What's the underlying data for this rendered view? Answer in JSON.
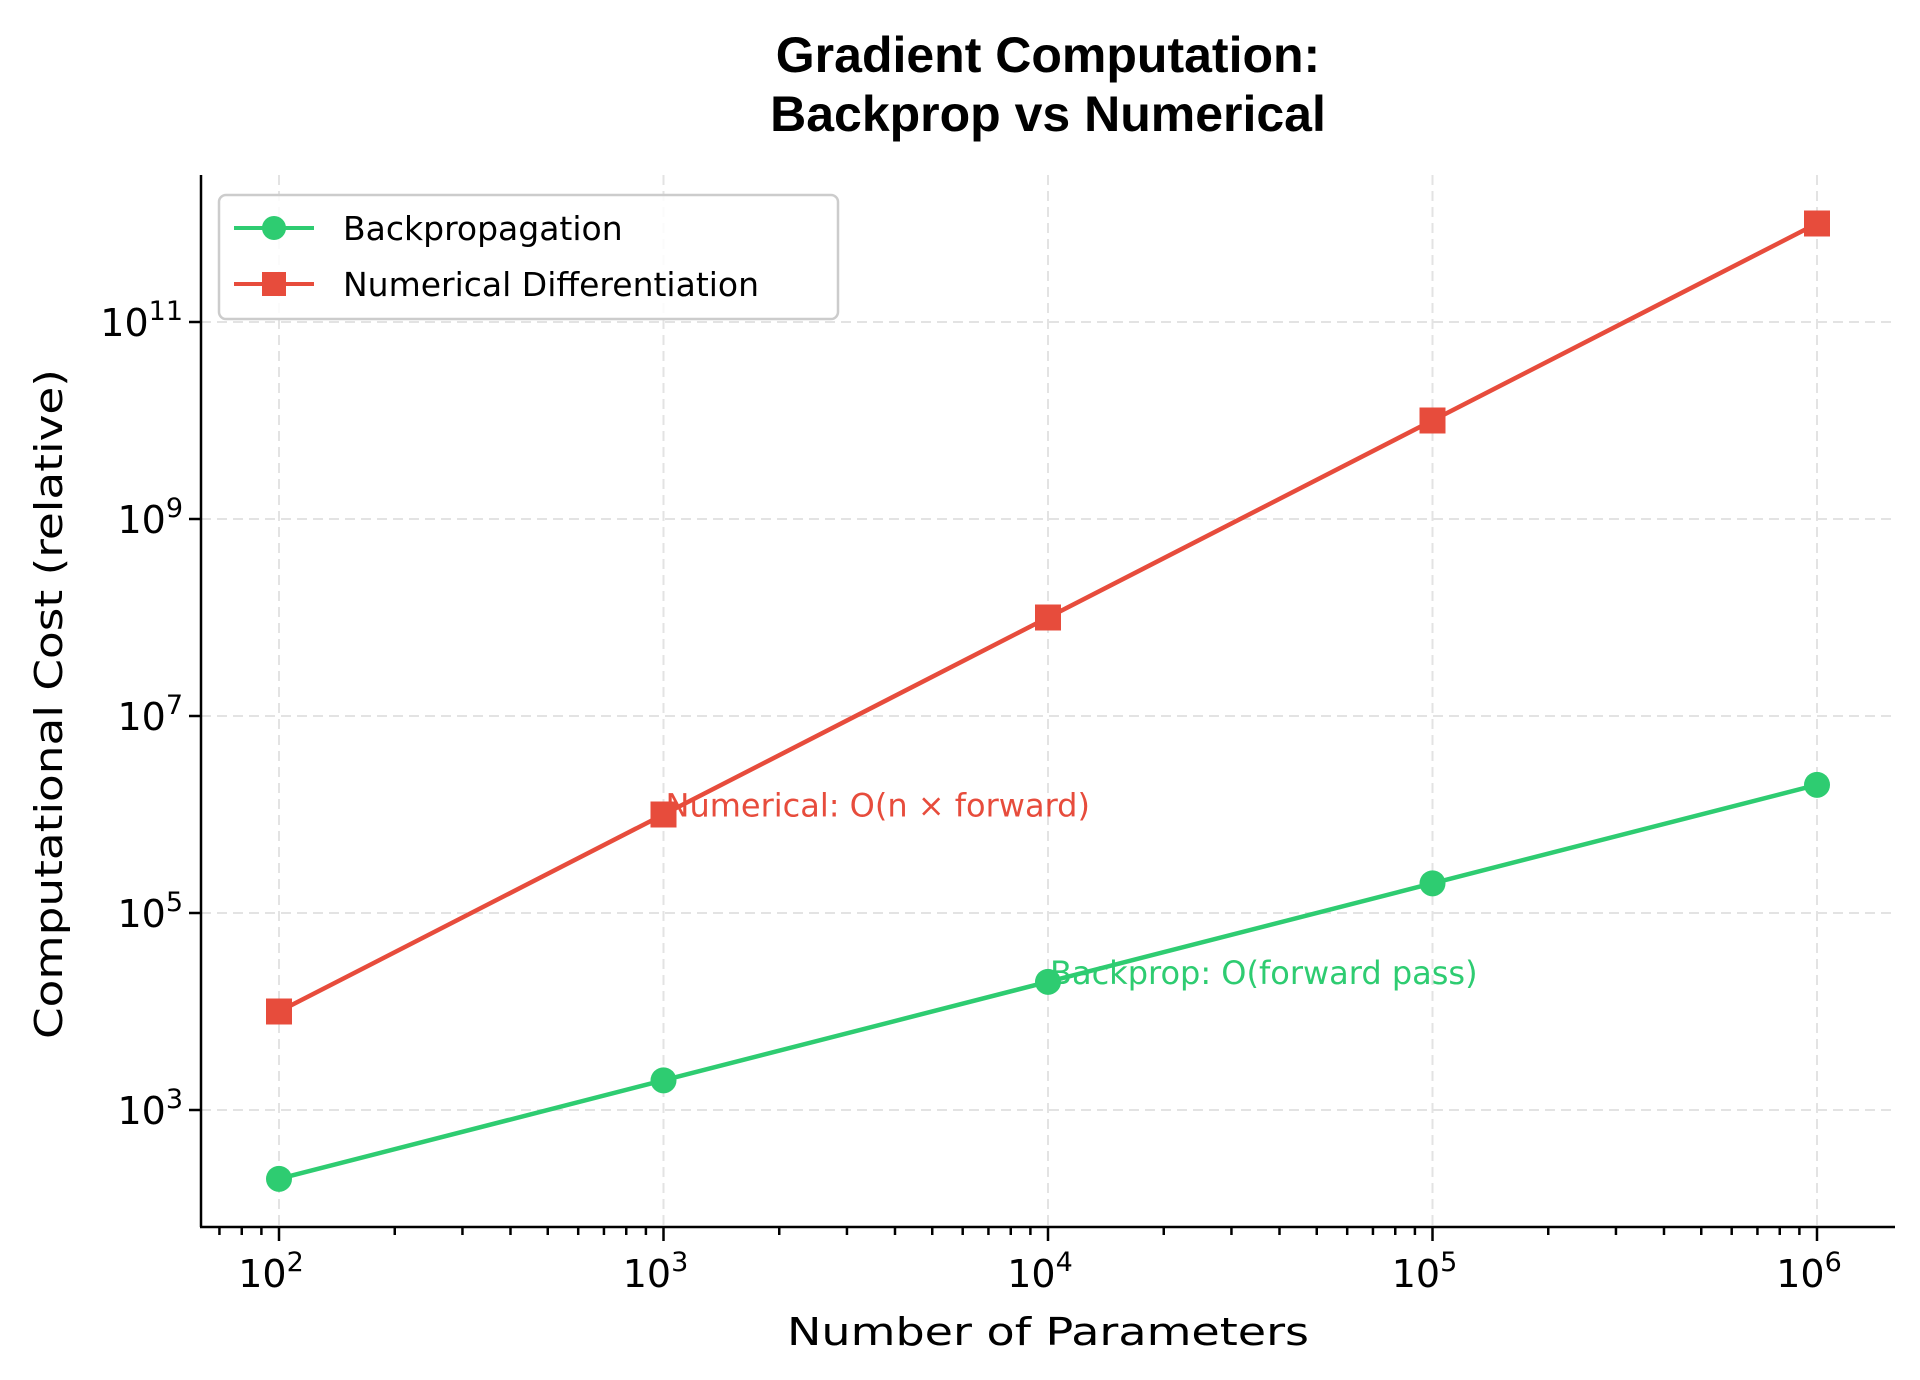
{
  "chart_data": {
    "type": "line",
    "title": "Gradient Computation:\nBackprop vs Numerical",
    "title_lines": [
      "Gradient Computation:",
      "Backprop vs Numerical"
    ],
    "xlabel": "Number of Parameters",
    "ylabel": "Computational Cost (relative)",
    "xscale": "log",
    "yscale": "log",
    "x": [
      100,
      1000,
      10000,
      100000,
      1000000
    ],
    "xlim": [
      63,
      2500000
    ],
    "ylim": [
      63,
      3200000000000.0
    ],
    "xticks": [
      {
        "value": 100,
        "base": "10",
        "exp": "2"
      },
      {
        "value": 1000,
        "base": "10",
        "exp": "3"
      },
      {
        "value": 10000,
        "base": "10",
        "exp": "4"
      },
      {
        "value": 100000,
        "base": "10",
        "exp": "5"
      },
      {
        "value": 1000000,
        "base": "10",
        "exp": "6"
      }
    ],
    "yticks": [
      {
        "value": 1000,
        "base": "10",
        "exp": "3"
      },
      {
        "value": 100000,
        "base": "10",
        "exp": "5"
      },
      {
        "value": 10000000,
        "base": "10",
        "exp": "7"
      },
      {
        "value": 1000000000,
        "base": "10",
        "exp": "9"
      },
      {
        "value": 100000000000,
        "base": "10",
        "exp": "11"
      }
    ],
    "grid": true,
    "legend_position": "upper left",
    "series": [
      {
        "name": "Backpropagation",
        "color": "#2ecc71",
        "marker": "circle",
        "values": [
          200,
          2000,
          20000,
          200000,
          2000000
        ]
      },
      {
        "name": "Numerical Differentiation",
        "color": "#e74c3c",
        "marker": "square",
        "values": [
          10000,
          1000000,
          100000000,
          10000000000,
          1000000000000
        ]
      }
    ],
    "annotations": [
      {
        "text": "Numerical: O(n × forward)",
        "x": 1000,
        "y": 1000000,
        "color": "#e74c3c"
      },
      {
        "text": "Backprop: O(forward pass)",
        "x": 10000,
        "y": 20000,
        "color": "#2ecc71"
      }
    ]
  }
}
